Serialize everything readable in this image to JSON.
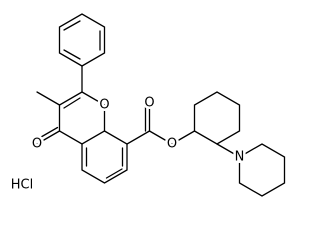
{
  "atoms": [
    {
      "label": "O"
    },
    {
      "label": "O"
    },
    {
      "label": "O"
    },
    {
      "label": "O"
    },
    {
      "label": "N"
    }
  ],
  "salt": "HCl"
}
